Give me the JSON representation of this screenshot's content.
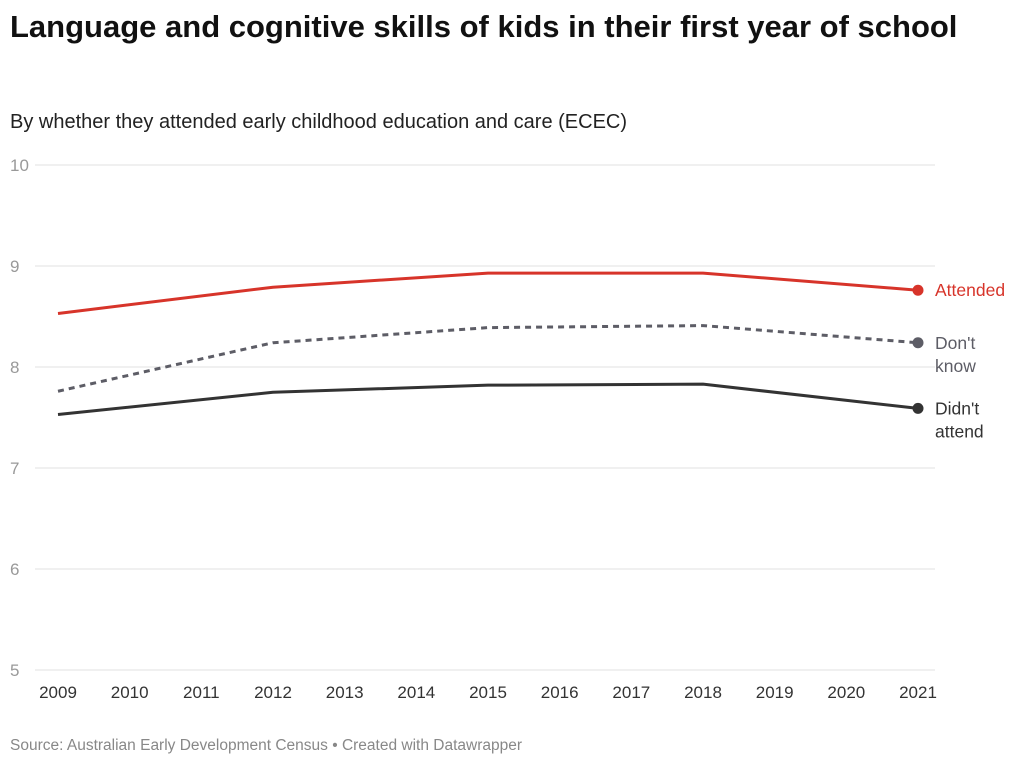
{
  "chart_data": {
    "type": "line",
    "title": "Language and cognitive skills of kids in their first year of school",
    "subtitle": "By whether they attended early childhood education and care (ECEC)",
    "xlabel": "",
    "ylabel": "",
    "ylim": [
      5,
      10
    ],
    "yticks": [
      "5",
      "6",
      "7",
      "8",
      "9",
      "10"
    ],
    "xticks": [
      "2009",
      "2010",
      "2011",
      "2012",
      "2013",
      "2014",
      "2015",
      "2016",
      "2017",
      "2018",
      "2019",
      "2020",
      "2021"
    ],
    "grid": true,
    "legend": "direct labels at line ends (right)",
    "x": [
      2009,
      2012,
      2015,
      2018,
      2021
    ],
    "series": [
      {
        "name": "Attended",
        "label_lines": [
          "Attended"
        ],
        "color": "#d7342a",
        "dashed": false,
        "values": [
          8.53,
          8.79,
          8.93,
          8.93,
          8.76
        ]
      },
      {
        "name": "Don't know",
        "label_lines": [
          "Don't",
          "know"
        ],
        "color": "#5d5d66",
        "dashed": true,
        "values": [
          7.76,
          8.24,
          8.39,
          8.41,
          8.24
        ]
      },
      {
        "name": "Didn't attend",
        "label_lines": [
          "Didn't",
          "attend"
        ],
        "color": "#333333",
        "dashed": false,
        "values": [
          7.53,
          7.75,
          7.82,
          7.83,
          7.59
        ]
      }
    ]
  },
  "footer": "Source: Australian Early Development Census • Created with Datawrapper"
}
